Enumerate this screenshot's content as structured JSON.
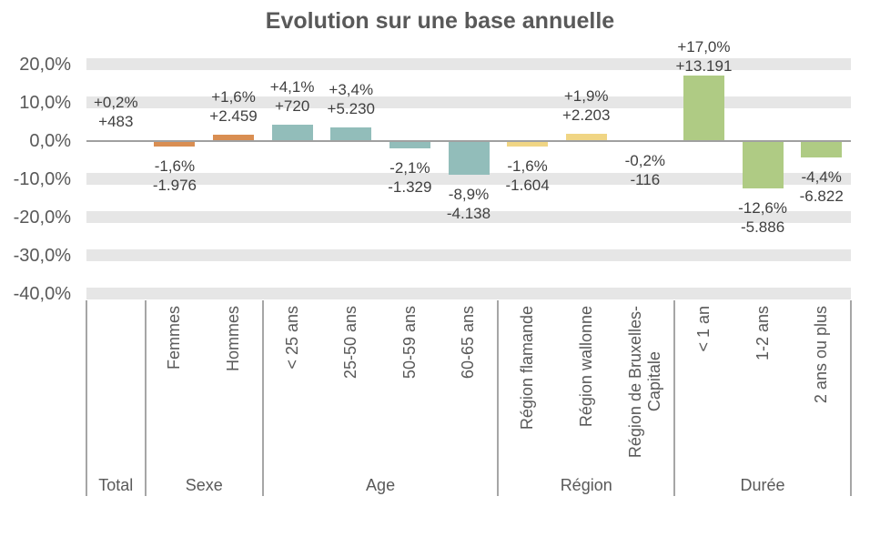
{
  "chart_data": {
    "type": "bar",
    "title": "Evolution sur une base annuelle",
    "xlabel": "",
    "ylabel": "",
    "ylim": [
      -40,
      20
    ],
    "grid": "horizontal-gray-bands-every-10pct",
    "legend": "none",
    "yticks": [
      {
        "value": 20,
        "label": "20,0%"
      },
      {
        "value": 10,
        "label": "10,0%"
      },
      {
        "value": 0,
        "label": "0,0%"
      },
      {
        "value": -10,
        "label": "-10,0%"
      },
      {
        "value": -20,
        "label": "-20,0%"
      },
      {
        "value": -30,
        "label": "-30,0%"
      },
      {
        "value": -40,
        "label": "-40,0%"
      }
    ],
    "groups": [
      {
        "name": "Total",
        "color": "#BFBFBF",
        "bars": [
          {
            "label": "",
            "value": 0.2,
            "pct_label": "+0,2%",
            "count_label": "+483"
          }
        ]
      },
      {
        "name": "Sexe",
        "color": "#D98E52",
        "bars": [
          {
            "label": "Femmes",
            "value": -1.6,
            "pct_label": "-1,6%",
            "count_label": "-1.976"
          },
          {
            "label": "Hommes",
            "value": 1.6,
            "pct_label": "+1,6%",
            "count_label": "+2.459"
          }
        ]
      },
      {
        "name": "Age",
        "color": "#92BDBA",
        "bars": [
          {
            "label": "< 25 ans",
            "value": 4.1,
            "pct_label": "+4,1%",
            "count_label": "+720"
          },
          {
            "label": "25-50 ans",
            "value": 3.4,
            "pct_label": "+3,4%",
            "count_label": "+5.230"
          },
          {
            "label": "50-59 ans",
            "value": -2.1,
            "pct_label": "-2,1%",
            "count_label": "-1.329"
          },
          {
            "label": "60-65 ans",
            "value": -8.9,
            "pct_label": "-8,9%",
            "count_label": "-4.138"
          }
        ]
      },
      {
        "name": "Région",
        "color": "#F0D584",
        "bars": [
          {
            "label": "Région flamande",
            "value": -1.6,
            "pct_label": "-1,6%",
            "count_label": "-1.604"
          },
          {
            "label": "Région wallonne",
            "value": 1.9,
            "pct_label": "+1,9%",
            "count_label": "+2.203"
          },
          {
            "label": "Région de Bruxelles-\nCapitale",
            "value": -0.2,
            "pct_label": "-0,2%",
            "count_label": "-116"
          }
        ]
      },
      {
        "name": "Durée",
        "color": "#AFCB84",
        "bars": [
          {
            "label": "< 1 an",
            "value": 17.0,
            "pct_label": "+17,0%",
            "count_label": "+13.191"
          },
          {
            "label": "1-2 ans",
            "value": -12.6,
            "pct_label": "-12,6%",
            "count_label": "-5.886"
          },
          {
            "label": "2 ans ou plus",
            "value": -4.4,
            "pct_label": "-4,4%",
            "count_label": "-6.822"
          }
        ]
      }
    ],
    "colors": {
      "grid_band": "#E6E6E6",
      "axis_line": "#A0A0A0",
      "divider_line": "#A6A6A6",
      "axis_text": "#595959",
      "label_text": "#404040",
      "title_text": "#595959",
      "background": "#FFFFFF"
    }
  }
}
